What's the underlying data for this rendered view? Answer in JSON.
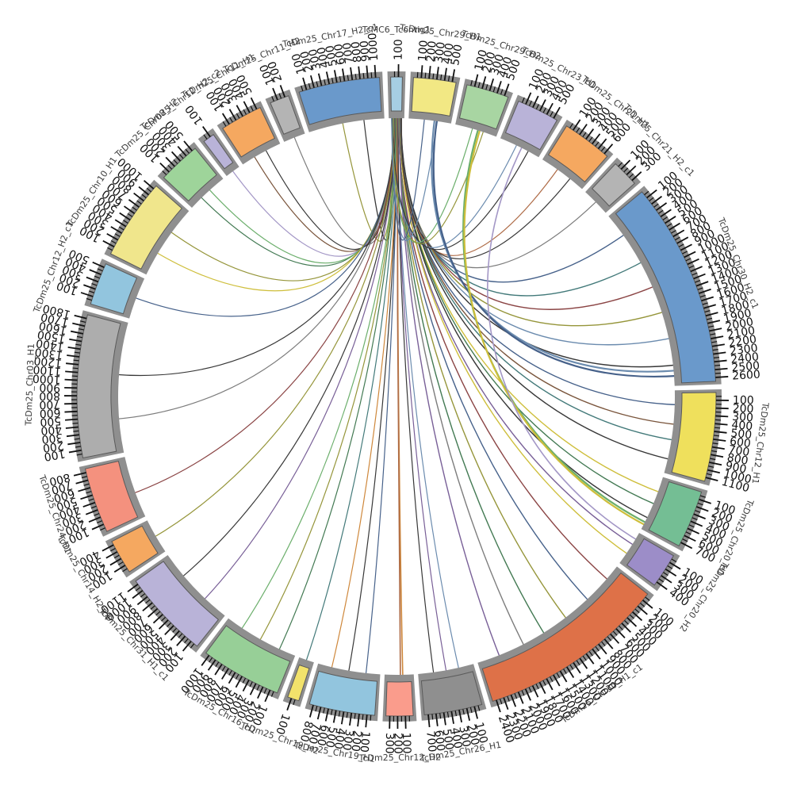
{
  "chart_data": {
    "type": "chord",
    "title": "",
    "layout": {
      "start": "top",
      "direction": "clockwise",
      "gap_deg": 2,
      "tick_interval": 100,
      "minor_tick_interval": 50,
      "band_shadow_color": "#8f8f8f",
      "band_stroke_color": "#5a5a5a"
    },
    "segments": [
      {
        "label": "TcMC6_Tcontig1",
        "length": 150,
        "color": "#A6CEE3"
      },
      {
        "label": "TcDm25_Chr29_H1",
        "length": 550,
        "color": "#F2E884"
      },
      {
        "label": "TcDm25_Chr29_H2",
        "length": 550,
        "color": "#A8D5A2"
      },
      {
        "label": "TcDm25_Chr23_H1",
        "length": 550,
        "color": "#B9B3D8"
      },
      {
        "label": "TcDm25_Chr21_H1",
        "length": 650,
        "color": "#F5A860"
      },
      {
        "label": "TcDm25_Chr21_H2_c1",
        "length": 350,
        "color": "#B4B4B4"
      },
      {
        "label": "TcDm25_Chr30_H2_c1",
        "length": 2650,
        "color": "#6A99CB"
      },
      {
        "label": "TcDm25_Chr12_H1",
        "length": 1150,
        "color": "#EFE05C"
      },
      {
        "label": "TcDm25_Chr20_H1",
        "length": 750,
        "color": "#74BE94"
      },
      {
        "label": "TcDm25_Chr20_H2",
        "length": 450,
        "color": "#9C8DC8"
      },
      {
        "label": "TcDm25_Chr30_H1_c1",
        "length": 2450,
        "color": "#DE7148"
      },
      {
        "label": "TcDm25_Chr26_H1",
        "length": 750,
        "color": "#8F8F8F"
      },
      {
        "label": "TcDm25_Chr12_H2",
        "length": 350,
        "color": "#FA9C8C"
      },
      {
        "label": "TcDm25_Chr19_H1",
        "length": 850,
        "color": "#92C5DE"
      },
      {
        "label": "TcDm25_Chr19_H2",
        "length": 150,
        "color": "#F2E26B"
      },
      {
        "label": "TcDm25_Chr16_H1",
        "length": 1050,
        "color": "#97CF97"
      },
      {
        "label": "TcDm25_Chr31_H1_c1",
        "length": 1150,
        "color": "#B9B3D8"
      },
      {
        "label": "TcDm25_Chr14_H2_c4",
        "length": 450,
        "color": "#F5A860"
      },
      {
        "label": "TcDm25_Chr24_H1",
        "length": 850,
        "color": "#F4917E"
      },
      {
        "label": "TcDm25_Chr03_H1",
        "length": 1850,
        "color": "#ADADAD"
      },
      {
        "label": "TcDm25_Chr12_H2_c1",
        "length": 550,
        "color": "#92C5DE"
      },
      {
        "label": "TcDm25_Chr10_H1",
        "length": 1050,
        "color": "#F0E68C"
      },
      {
        "label": "TcDm25_Chr08_H2",
        "length": 550,
        "color": "#9ED49A"
      },
      {
        "label": "TcDm25_Chr12_H2_c2",
        "length": 150,
        "color": "#B9B3D8"
      },
      {
        "label": "TcDm25_Chr11_H1",
        "length": 550,
        "color": "#F5A860"
      },
      {
        "label": "TcDm25_Chr11_H2",
        "length": 250,
        "color": "#B4B4B4"
      },
      {
        "label": "TcDm25_Chr17_H2_c1",
        "length": 1050,
        "color": "#6A99CB"
      }
    ],
    "links": [
      [
        0,
        0.08,
        26,
        0.45,
        "#8A8A25",
        1.2
      ],
      [
        0,
        0.1,
        26,
        0.75,
        "#222222",
        1.2
      ],
      [
        0,
        0.12,
        25,
        0.5,
        "#6E6E6E",
        1.2
      ],
      [
        0,
        0.15,
        24,
        0.3,
        "#6B4226",
        1.2
      ],
      [
        0,
        0.18,
        24,
        0.65,
        "#222222",
        1.2
      ],
      [
        0,
        0.2,
        23,
        0.5,
        "#9A8CC0",
        1.2
      ],
      [
        0,
        0.22,
        22,
        0.3,
        "#2E6B40",
        1.2
      ],
      [
        0,
        0.25,
        22,
        0.6,
        "#5BA65B",
        1.2
      ],
      [
        0,
        0.28,
        21,
        0.3,
        "#C9B826",
        1.2
      ],
      [
        0,
        0.3,
        21,
        0.65,
        "#8A8A25",
        1.2
      ],
      [
        0,
        0.32,
        20,
        0.5,
        "#33517E",
        1.2
      ],
      [
        0,
        0.35,
        19,
        0.25,
        "#6E6E6E",
        1.2
      ],
      [
        0,
        0.36,
        19,
        0.6,
        "#222222",
        1.2
      ],
      [
        0,
        0.38,
        18,
        0.4,
        "#7E3030",
        1.2
      ],
      [
        0,
        0.4,
        17,
        0.5,
        "#8A8A25",
        1.2
      ],
      [
        0,
        0.42,
        16,
        0.3,
        "#6A4E8C",
        1.2
      ],
      [
        0,
        0.44,
        16,
        0.7,
        "#222222",
        1.2
      ],
      [
        0,
        0.46,
        15,
        0.2,
        "#2E6B40",
        1.2
      ],
      [
        0,
        0.48,
        15,
        0.5,
        "#8A8A25",
        1.2
      ],
      [
        0,
        0.5,
        15,
        0.8,
        "#5BA65B",
        1.2
      ],
      [
        0,
        0.52,
        14,
        0.5,
        "#2E6B6B",
        1.2
      ],
      [
        0,
        0.54,
        13,
        0.2,
        "#33517E",
        1.2
      ],
      [
        0,
        0.56,
        13,
        0.5,
        "#222222",
        1.2
      ],
      [
        0,
        0.58,
        13,
        0.8,
        "#C97B26",
        1.2
      ],
      [
        0,
        0.6,
        12,
        0.35,
        "#C97B26",
        1.6
      ],
      [
        0,
        0.61,
        12,
        0.45,
        "#A65B33",
        1.6
      ],
      [
        0,
        0.62,
        11,
        0.25,
        "#5B7FA6",
        1.2
      ],
      [
        0,
        0.64,
        11,
        0.5,
        "#6A4E8C",
        1.2
      ],
      [
        0,
        0.66,
        11,
        0.75,
        "#222222",
        1.2
      ],
      [
        0,
        0.68,
        10,
        0.08,
        "#7E3030",
        1.4
      ],
      [
        0,
        0.7,
        10,
        0.25,
        "#33517E",
        1.4
      ],
      [
        0,
        0.72,
        10,
        0.42,
        "#8A8A25",
        1.4
      ],
      [
        0,
        0.74,
        10,
        0.58,
        "#2E6B40",
        1.4
      ],
      [
        0,
        0.76,
        10,
        0.72,
        "#6E6E6E",
        1.4
      ],
      [
        0,
        0.78,
        10,
        0.88,
        "#6A4E8C",
        1.4
      ],
      [
        0,
        0.8,
        9,
        0.35,
        "#6A4E8C",
        1.4
      ],
      [
        0,
        0.81,
        9,
        0.7,
        "#C9B826",
        1.4
      ],
      [
        0,
        0.83,
        8,
        0.25,
        "#C9B826",
        1.4
      ],
      [
        0,
        0.84,
        8,
        0.5,
        "#2E6B40",
        1.4
      ],
      [
        0,
        0.85,
        8,
        0.8,
        "#222222",
        1.4
      ],
      [
        0,
        0.86,
        7,
        0.15,
        "#33517E",
        1.4
      ],
      [
        0,
        0.87,
        7,
        0.4,
        "#6B4226",
        1.4
      ],
      [
        0,
        0.88,
        7,
        0.6,
        "#2E6B6B",
        1.4
      ],
      [
        0,
        0.89,
        7,
        0.85,
        "#222222",
        1.4
      ],
      [
        0,
        0.9,
        6,
        0.12,
        "#33517E",
        1.4
      ],
      [
        0,
        0.91,
        6,
        0.3,
        "#2E6B6B",
        1.4
      ],
      [
        0,
        0.92,
        6,
        0.45,
        "#7E3030",
        1.4
      ],
      [
        0,
        0.93,
        6,
        0.6,
        "#8A8A25",
        1.4
      ],
      [
        0,
        0.94,
        6,
        0.75,
        "#5B7FA6",
        1.4
      ],
      [
        0,
        0.95,
        6,
        0.9,
        "#222222",
        1.4
      ],
      [
        0,
        0.97,
        5,
        0.5,
        "#6E6E6E",
        1.2
      ],
      [
        0,
        0.98,
        4,
        0.35,
        "#A65B33",
        1.2
      ],
      [
        0,
        0.99,
        4,
        0.7,
        "#222222",
        1.2
      ],
      [
        0,
        0.05,
        3,
        0.4,
        "#5B7FA6",
        1.2
      ],
      [
        0,
        0.06,
        3,
        0.75,
        "#222222",
        1.2
      ],
      [
        0,
        0.03,
        2,
        0.4,
        "#5BA65B",
        1.2
      ],
      [
        0,
        0.04,
        2,
        0.7,
        "#8A8A25",
        1.2
      ],
      [
        0,
        0.01,
        1,
        0.35,
        "#33517E",
        1.2
      ],
      [
        0,
        0.02,
        1,
        0.7,
        "#5B7FA6",
        1.2
      ],
      [
        1,
        0.62,
        6,
        0.93,
        "#5B7FA6",
        2.2
      ],
      [
        1,
        0.68,
        6,
        0.96,
        "#33517E",
        2.2
      ],
      [
        2,
        0.55,
        8,
        0.9,
        "#5BA65B",
        2.2
      ],
      [
        2,
        0.6,
        8,
        0.95,
        "#C9B826",
        2.2
      ],
      [
        3,
        0.55,
        9,
        0.15,
        "#9A8CC0",
        1.6
      ]
    ]
  }
}
